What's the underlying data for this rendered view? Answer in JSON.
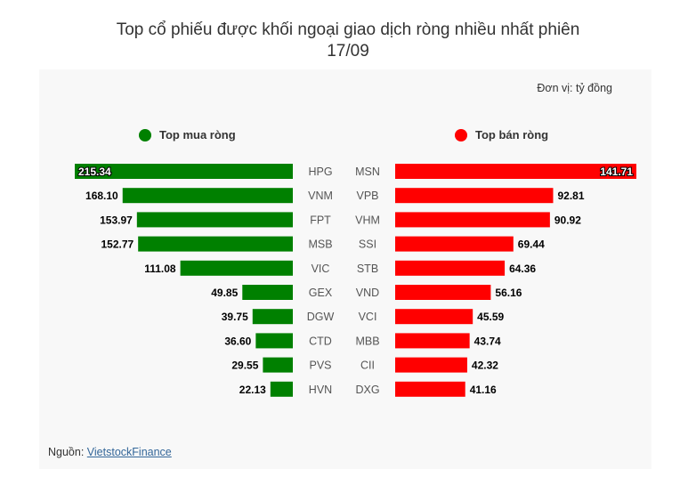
{
  "title_line1": "Top cổ phiếu được khối ngoại giao dịch ròng nhiều nhất phiên",
  "title_line2": "17/09",
  "unit": "Đơn vị: tỷ đồng",
  "source_prefix": "Nguồn:",
  "source_link": "VietstockFinance",
  "colors": {
    "buy": "#008000",
    "sell": "#ff0000",
    "panel": "#f8f8f8"
  },
  "chart_data": {
    "type": "bar",
    "buy": {
      "label": "Top mua ròng",
      "categories": [
        "HPG",
        "VNM",
        "FPT",
        "MSB",
        "VIC",
        "GEX",
        "DGW",
        "CTD",
        "PVS",
        "HVN"
      ],
      "values": [
        215.34,
        168.1,
        153.97,
        152.77,
        111.08,
        49.85,
        39.75,
        36.6,
        29.55,
        22.13
      ]
    },
    "sell": {
      "label": "Top bán ròng",
      "categories": [
        "MSN",
        "VPB",
        "VHM",
        "SSI",
        "STB",
        "VND",
        "VCI",
        "MBB",
        "CII",
        "DXG"
      ],
      "values": [
        141.71,
        92.81,
        90.92,
        69.44,
        64.36,
        56.16,
        45.59,
        43.74,
        42.32,
        41.16
      ]
    }
  }
}
